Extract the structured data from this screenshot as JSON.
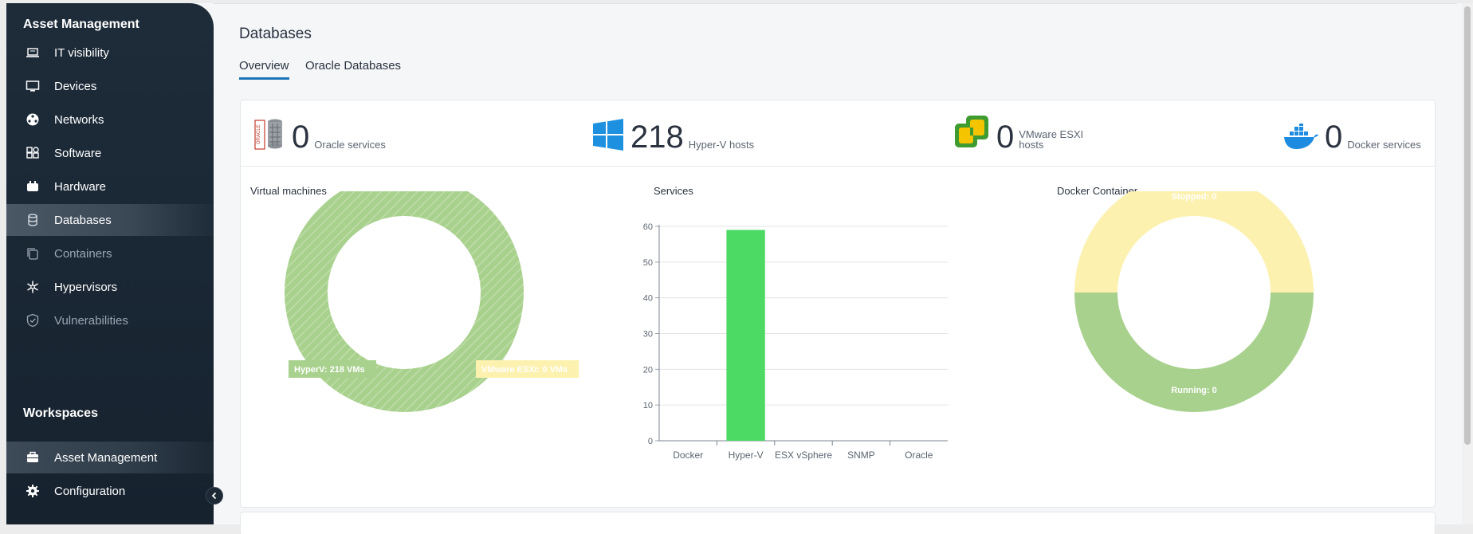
{
  "sidebar": {
    "heading": "Asset Management",
    "items": [
      {
        "label": "IT visibility",
        "icon": "laptop-icon"
      },
      {
        "label": "Devices",
        "icon": "monitor-icon"
      },
      {
        "label": "Networks",
        "icon": "network-icon"
      },
      {
        "label": "Software",
        "icon": "software-icon"
      },
      {
        "label": "Hardware",
        "icon": "hardware-icon"
      },
      {
        "label": "Databases",
        "icon": "database-icon",
        "active": true
      },
      {
        "label": "Containers",
        "icon": "container-icon",
        "muted": true
      },
      {
        "label": "Hypervisors",
        "icon": "hypervisor-icon"
      },
      {
        "label": "Vulnerabilities",
        "icon": "shield-icon",
        "muted": true
      }
    ],
    "workspaces_heading": "Workspaces",
    "workspaces": [
      {
        "label": "Asset Management",
        "icon": "briefcase-icon",
        "active": true
      },
      {
        "label": "Configuration",
        "icon": "gear-icon"
      }
    ]
  },
  "page": {
    "title": "Databases",
    "tabs": [
      {
        "label": "Overview",
        "active": true
      },
      {
        "label": "Oracle Databases",
        "active": false
      }
    ]
  },
  "stats": [
    {
      "value": "0",
      "label": "Oracle services",
      "icon": "oracle-db-icon"
    },
    {
      "value": "218",
      "label": "Hyper-V hosts",
      "icon": "windows-icon"
    },
    {
      "value": "0",
      "label_line1": "VMware ESXI",
      "label_line2": "hosts",
      "icon": "vmware-icon"
    },
    {
      "value": "0",
      "label": "Docker services",
      "icon": "docker-icon"
    }
  ],
  "panels": {
    "vm_title": "Virtual machines",
    "services_title": "Services",
    "docker_title": "Docker Container"
  },
  "colors": {
    "green": "#a9d18e",
    "bar_green": "#4cd964",
    "yellow": "#fdf1b0",
    "accent": "#1c74b8"
  },
  "chart_data": [
    {
      "type": "pie",
      "title": "Virtual machines",
      "slices": [
        {
          "label": "HyperV: 218 VMs",
          "value": 218
        },
        {
          "label": "VMware ESXi: 0 VMs",
          "value": 0
        }
      ]
    },
    {
      "type": "bar",
      "title": "Services",
      "categories": [
        "Docker",
        "Hyper-V",
        "ESX vSphere",
        "SNMP",
        "Oracle"
      ],
      "values": [
        0,
        59,
        0,
        0,
        0
      ],
      "ylim": [
        0,
        60
      ],
      "yticks": [
        0,
        10,
        20,
        30,
        40,
        50,
        60
      ],
      "grid": true
    },
    {
      "type": "pie",
      "title": "Docker Container",
      "slices": [
        {
          "label": "Stopped: 0",
          "value": 0
        },
        {
          "label": "Running: 0",
          "value": 0
        }
      ]
    }
  ]
}
